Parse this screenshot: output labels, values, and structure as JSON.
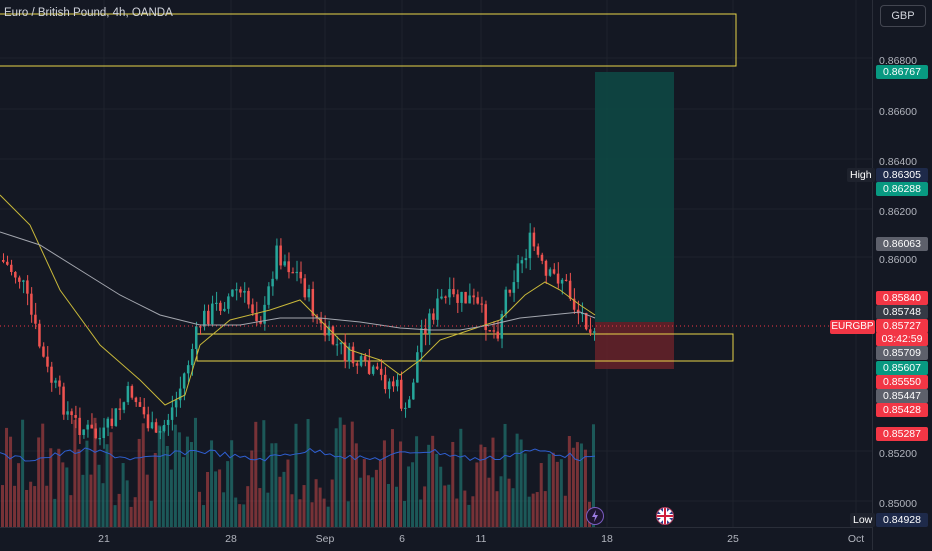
{
  "chart_title": "Euro / British Pound, 4h, OANDA",
  "currency": "GBP",
  "symbol": "EURGBP",
  "y_ticks": [
    "0.86800",
    "0.86600",
    "0.86400",
    "0.86200",
    "0.86000",
    "0.85200",
    "0.85000"
  ],
  "x_ticks": [
    "21",
    "28",
    "Sep",
    "6",
    "11",
    "18",
    "25",
    "Oct"
  ],
  "price_labels": {
    "target": "0.86767",
    "high": "0.86305",
    "high_name": "High",
    "p86288": "0.86288",
    "p86063": "0.86063",
    "p85840": "0.85840",
    "p85748": "0.85748",
    "current": "0.85727",
    "countdown": "03:42:59",
    "p85709": "0.85709",
    "p85607": "0.85607",
    "p85550": "0.85550",
    "p85447": "0.85447",
    "p85428": "0.85428",
    "p85287": "0.85287",
    "low": "0.84928",
    "low_name": "Low"
  },
  "colors": {
    "up": "#26a69a",
    "down": "#ef5350",
    "ma_yellow": "#c8b83a",
    "ma_grey": "#a3a6ae",
    "zone": "#e8d54a",
    "profit": "#0d4a45",
    "loss": "#6b2329"
  },
  "icons": [
    "lightning-icon",
    "uk-flag-icon"
  ]
}
